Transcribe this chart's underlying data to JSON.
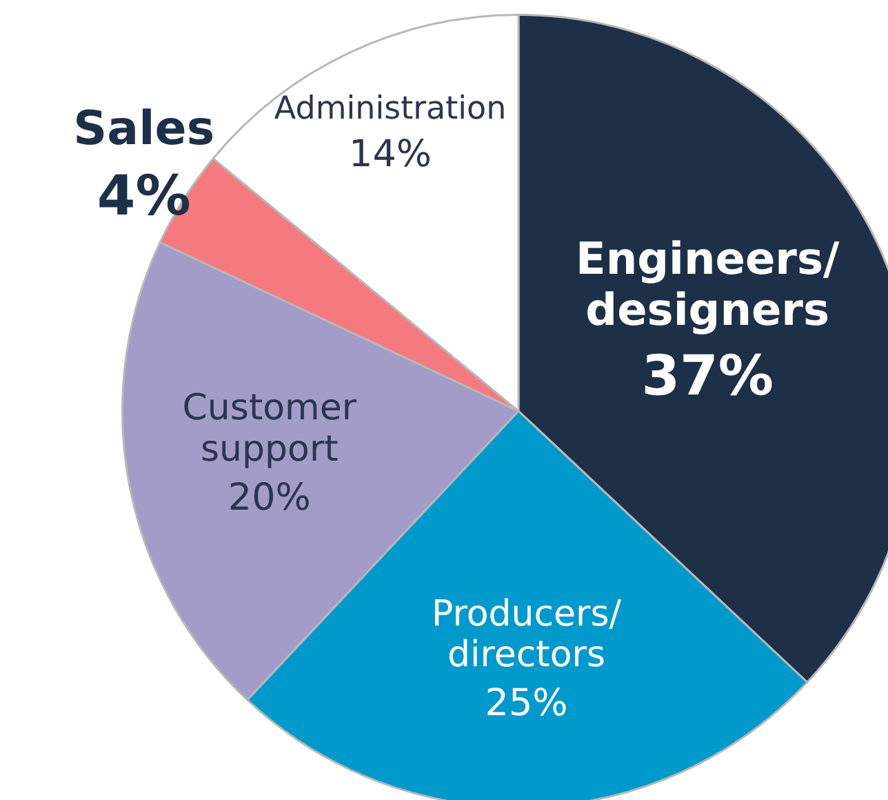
{
  "chart_data": {
    "type": "pie",
    "categories": [
      "Engineers/designers",
      "Producers/directors",
      "Customer support",
      "Sales",
      "Administration"
    ],
    "values": [
      37,
      25,
      20,
      4,
      14
    ],
    "colors": [
      "#1e3048",
      "#0099cc",
      "#a39bc8",
      "#f47a7f",
      "#ffffff"
    ],
    "value_labels": [
      "37%",
      "25%",
      "20%",
      "4%",
      "14%"
    ],
    "legend": false
  }
}
